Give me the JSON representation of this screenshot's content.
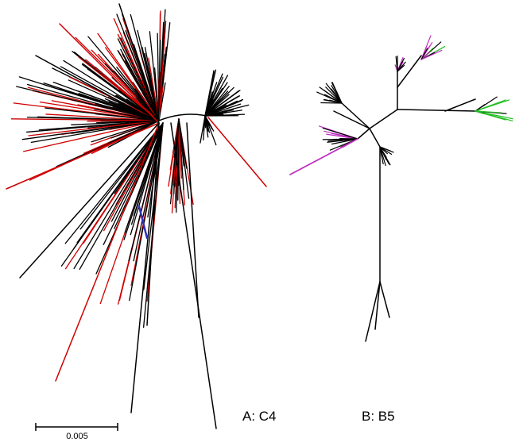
{
  "scale_bar": {
    "label": "0.005"
  },
  "panels": [
    {
      "label": "A: C4"
    },
    {
      "label": "B: B5"
    }
  ]
}
